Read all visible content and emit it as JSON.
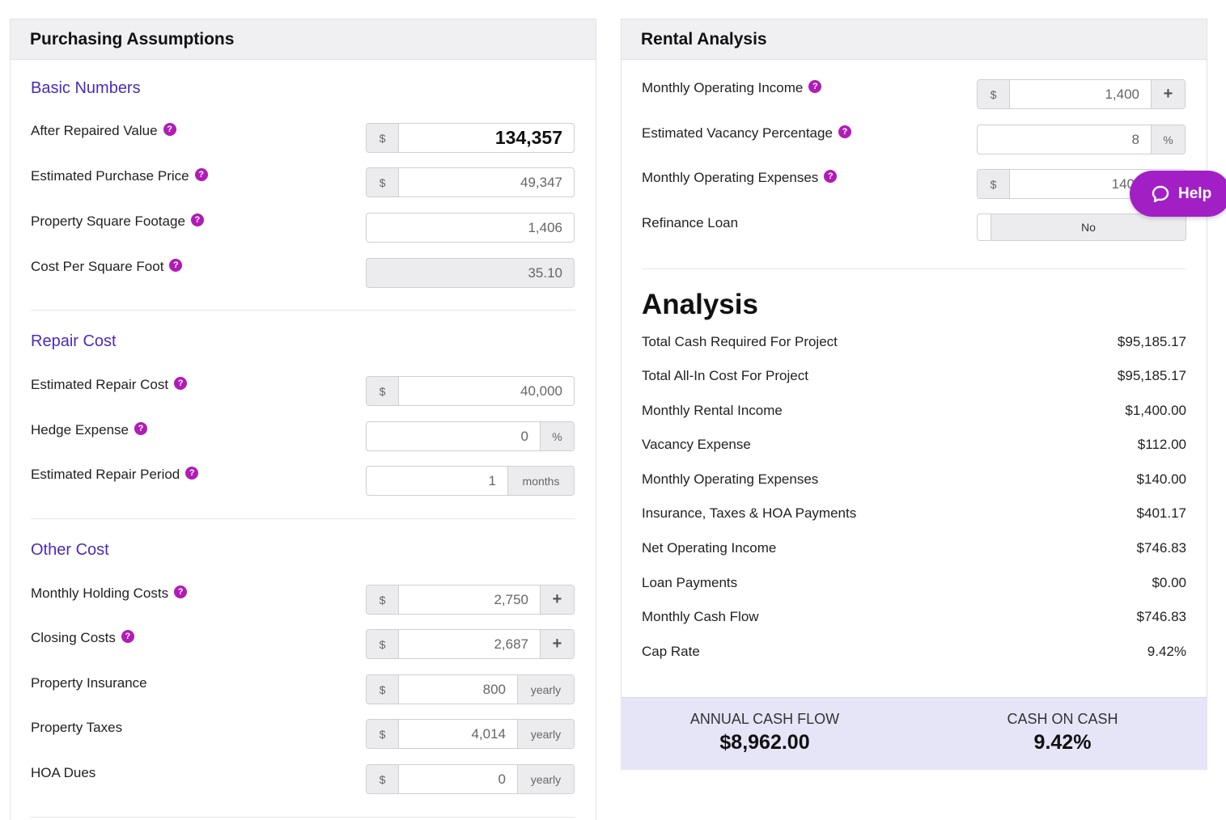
{
  "left_panel": {
    "title": "Purchasing Assumptions",
    "basic": {
      "title": "Basic Numbers",
      "arv": {
        "label": "After Repaired Value",
        "prefix": "$",
        "value": "134,357"
      },
      "purchase_price": {
        "label": "Estimated Purchase Price",
        "prefix": "$",
        "value": "49,347"
      },
      "sqft": {
        "label": "Property Square Footage",
        "value": "1,406"
      },
      "cost_per_sqft": {
        "label": "Cost Per Square Foot",
        "value": "35.10"
      }
    },
    "repair": {
      "title": "Repair Cost",
      "repair_cost": {
        "label": "Estimated Repair Cost",
        "prefix": "$",
        "value": "40,000"
      },
      "hedge": {
        "label": "Hedge Expense",
        "value": "0",
        "suffix": "%"
      },
      "period": {
        "label": "Estimated Repair Period",
        "value": "1",
        "suffix": "months"
      }
    },
    "other": {
      "title": "Other Cost",
      "holding": {
        "label": "Monthly Holding Costs",
        "prefix": "$",
        "value": "2,750",
        "action": "+"
      },
      "closing": {
        "label": "Closing Costs",
        "prefix": "$",
        "value": "2,687",
        "action": "+"
      },
      "insurance": {
        "label": "Property Insurance",
        "prefix": "$",
        "value": "800",
        "suffix": "yearly"
      },
      "taxes": {
        "label": "Property Taxes",
        "prefix": "$",
        "value": "4,014",
        "suffix": "yearly"
      },
      "hoa": {
        "label": "HOA Dues",
        "prefix": "$",
        "value": "0",
        "suffix": "yearly"
      }
    }
  },
  "right_panel": {
    "title": "Rental Analysis",
    "income": {
      "label": "Monthly Operating Income",
      "prefix": "$",
      "value": "1,400",
      "action": "+"
    },
    "vacancy": {
      "label": "Estimated Vacancy Percentage",
      "value": "8",
      "suffix": "%"
    },
    "expenses": {
      "label": "Monthly Operating Expenses",
      "prefix": "$",
      "value": "140"
    },
    "refinance": {
      "label": "Refinance Loan",
      "value": "No"
    },
    "analysis": {
      "title": "Analysis",
      "rows": [
        {
          "label": "Total Cash Required For Project",
          "value": "$95,185.17"
        },
        {
          "label": "Total All-In Cost For Project",
          "value": "$95,185.17"
        },
        {
          "label": "Monthly Rental Income",
          "value": "$1,400.00"
        },
        {
          "label": "Vacancy Expense",
          "value": "$112.00"
        },
        {
          "label": "Monthly Operating Expenses",
          "value": "$140.00"
        },
        {
          "label": "Insurance, Taxes & HOA Payments",
          "value": "$401.17"
        },
        {
          "label": "Net Operating Income",
          "value": "$746.83"
        },
        {
          "label": "Loan Payments",
          "value": "$0.00"
        },
        {
          "label": "Monthly Cash Flow",
          "value": "$746.83"
        },
        {
          "label": "Cap Rate",
          "value": "9.42%"
        }
      ]
    },
    "summary": {
      "annual_label": "ANNUAL CASH FLOW",
      "annual_value": "$8,962.00",
      "coc_label": "CASH ON CASH",
      "coc_value": "9.42%"
    }
  },
  "help_button": {
    "label": "Help",
    "icon": "chat-bubble-icon"
  },
  "icons": {
    "help_marker": "?",
    "help_color": "#b01cb5",
    "accent": "#4b2bbf"
  }
}
